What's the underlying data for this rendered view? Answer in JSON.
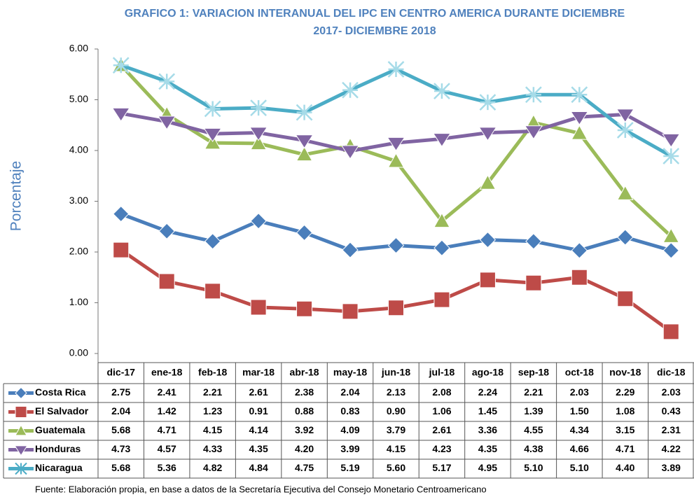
{
  "chart_data": {
    "type": "line",
    "title": [
      "GRAFICO 1: VARIACION INTERANUAL DEL IPC EN CENTRO  AMERICA DURANTE DICIEMBRE",
      "2017- DICIEMBRE 2018"
    ],
    "y_label": "Porcentaje",
    "source": "Fuente: Elaboración propia, en base a datos de la Secretaría Ejecutiva del Consejo Monetario Centroamericano",
    "categories": [
      "dic-17",
      "ene-18",
      "feb-18",
      "mar-18",
      "abr-18",
      "may-18",
      "jun-18",
      "jul-18",
      "ago-18",
      "sep-18",
      "oct-18",
      "nov-18",
      "dic-18"
    ],
    "ylim": [
      0,
      6
    ],
    "yticks": [
      {
        "value": 0,
        "label": "0.00"
      },
      {
        "value": 1,
        "label": "1.00"
      },
      {
        "value": 2,
        "label": "2.00"
      },
      {
        "value": 3,
        "label": "3.00"
      },
      {
        "value": 4,
        "label": "4.00"
      },
      {
        "value": 5,
        "label": "5.00"
      },
      {
        "value": 6,
        "label": "6.00"
      }
    ],
    "series": [
      {
        "name": "Costa Rica",
        "color": "#4a7ebb",
        "marker": "diamond",
        "values": [
          2.75,
          2.41,
          2.21,
          2.61,
          2.38,
          2.04,
          2.13,
          2.08,
          2.24,
          2.21,
          2.03,
          2.29,
          2.03
        ],
        "value_labels": [
          "2.75",
          "2.41",
          "2.21",
          "2.61",
          "2.38",
          "2.04",
          "2.13",
          "2.08",
          "2.24",
          "2.21",
          "2.03",
          "2.29",
          "2.03"
        ]
      },
      {
        "name": "El Salvador",
        "color": "#be4b48",
        "marker": "square",
        "values": [
          2.04,
          1.42,
          1.23,
          0.91,
          0.88,
          0.83,
          0.9,
          1.06,
          1.45,
          1.39,
          1.5,
          1.08,
          0.43
        ],
        "value_labels": [
          "2.04",
          "1.42",
          "1.23",
          "0.91",
          "0.88",
          "0.83",
          "0.90",
          "1.06",
          "1.45",
          "1.39",
          "1.50",
          "1.08",
          "0.43"
        ]
      },
      {
        "name": "Guatemala",
        "color": "#9bbb59",
        "marker": "triangle",
        "values": [
          5.68,
          4.71,
          4.15,
          4.14,
          3.92,
          4.09,
          3.79,
          2.61,
          3.36,
          4.55,
          4.34,
          3.15,
          2.31
        ],
        "value_labels": [
          "5.68",
          "4.71",
          "4.15",
          "4.14",
          "3.92",
          "4.09",
          "3.79",
          "2.61",
          "3.36",
          "4.55",
          "4.34",
          "3.15",
          "2.31"
        ]
      },
      {
        "name": "Honduras",
        "color": "#8064a2",
        "marker": "down",
        "values": [
          4.73,
          4.57,
          4.33,
          4.35,
          4.2,
          3.99,
          4.15,
          4.23,
          4.35,
          4.38,
          4.66,
          4.71,
          4.22
        ],
        "value_labels": [
          "4.73",
          "4.57",
          "4.33",
          "4.35",
          "4.20",
          "3.99",
          "4.15",
          "4.23",
          "4.35",
          "4.38",
          "4.66",
          "4.71",
          "4.22"
        ]
      },
      {
        "name": "Nicaragua",
        "color": "#4bacc6",
        "marker": "star",
        "values": [
          5.68,
          5.36,
          4.82,
          4.84,
          4.75,
          5.19,
          5.6,
          5.17,
          4.95,
          5.1,
          5.1,
          4.4,
          3.89
        ],
        "value_labels": [
          "5.68",
          "5.36",
          "4.82",
          "4.84",
          "4.75",
          "5.19",
          "5.60",
          "5.17",
          "4.95",
          "5.10",
          "5.10",
          "4.40",
          "3.89"
        ]
      }
    ]
  }
}
